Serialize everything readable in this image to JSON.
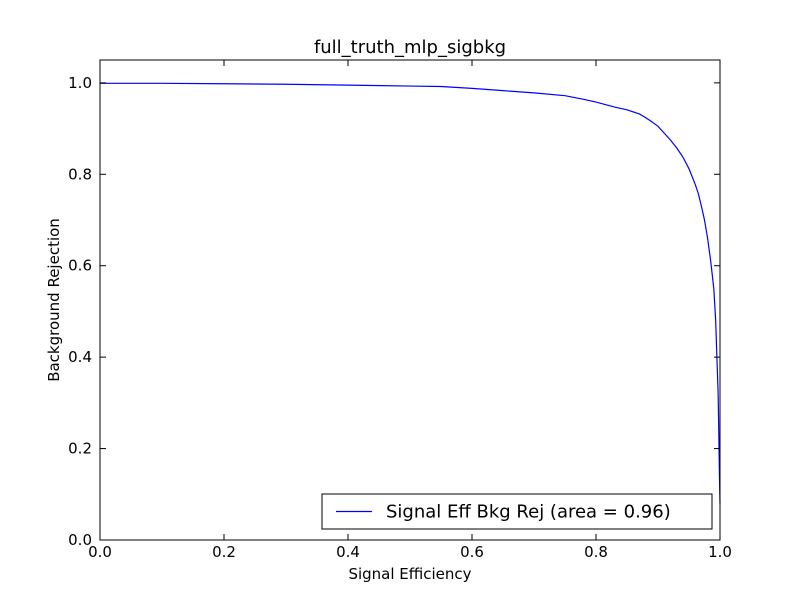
{
  "chart_data": {
    "type": "line",
    "title": "full_truth_mlp_sigbkg",
    "xlabel": "Signal Efficiency",
    "ylabel": "Background Rejection",
    "xlim": [
      0.0,
      1.0
    ],
    "ylim": [
      0.0,
      1.05
    ],
    "x_ticks": [
      "0.0",
      "0.2",
      "0.4",
      "0.6",
      "0.8",
      "1.0"
    ],
    "y_ticks": [
      "0.0",
      "0.2",
      "0.4",
      "0.6",
      "0.8",
      "1.0"
    ],
    "grid": false,
    "legend_position": "bottom-right",
    "series": [
      {
        "name": "Signal Eff Bkg Rej (area = 0.96)",
        "color": "#0000ff",
        "x": [
          0.0,
          0.05,
          0.1,
          0.2,
          0.3,
          0.4,
          0.5,
          0.55,
          0.6,
          0.65,
          0.7,
          0.75,
          0.78,
          0.8,
          0.83,
          0.85,
          0.87,
          0.88,
          0.89,
          0.9,
          0.91,
          0.92,
          0.93,
          0.94,
          0.95,
          0.96,
          0.965,
          0.97,
          0.975,
          0.98,
          0.985,
          0.99,
          0.993,
          0.995,
          0.997,
          0.998,
          0.999,
          1.0
        ],
        "y": [
          0.999,
          0.999,
          0.999,
          0.998,
          0.997,
          0.995,
          0.993,
          0.992,
          0.988,
          0.983,
          0.978,
          0.972,
          0.964,
          0.958,
          0.947,
          0.941,
          0.932,
          0.924,
          0.915,
          0.905,
          0.89,
          0.875,
          0.858,
          0.838,
          0.812,
          0.778,
          0.758,
          0.73,
          0.7,
          0.66,
          0.61,
          0.55,
          0.48,
          0.4,
          0.32,
          0.24,
          0.15,
          0.08
        ]
      }
    ]
  }
}
